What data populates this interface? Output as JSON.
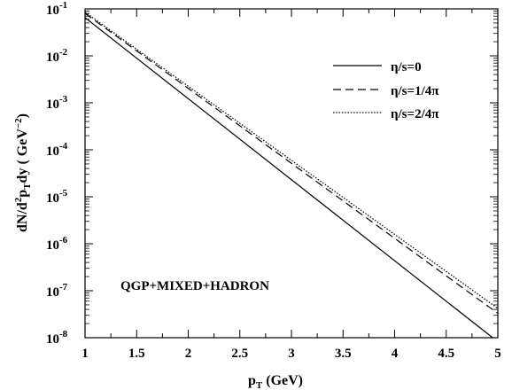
{
  "chart_data": {
    "type": "line",
    "xlabel_main": "p",
    "xlabel_sub": "T",
    "xlabel_unit": " (GeV)",
    "ylabel_parts": [
      "dN/d",
      "2",
      "p",
      "T",
      "dy ( GeV",
      "−2",
      ")"
    ],
    "xlim": [
      1,
      5
    ],
    "ylim_log10": [
      -8,
      -1
    ],
    "yscale": "log",
    "x_ticks": [
      {
        "v": 1,
        "label": "1"
      },
      {
        "v": 1.5,
        "label": "1.5"
      },
      {
        "v": 2,
        "label": "2"
      },
      {
        "v": 2.5,
        "label": "2.5"
      },
      {
        "v": 3,
        "label": "3"
      },
      {
        "v": 3.5,
        "label": "3.5"
      },
      {
        "v": 4,
        "label": "4"
      },
      {
        "v": 4.5,
        "label": "4.5"
      },
      {
        "v": 5,
        "label": "5"
      }
    ],
    "y_ticks": [
      {
        "exp": -1,
        "base": "10",
        "sup": "-1"
      },
      {
        "exp": -2,
        "base": "10",
        "sup": "-2"
      },
      {
        "exp": -3,
        "base": "10",
        "sup": "-3"
      },
      {
        "exp": -4,
        "base": "10",
        "sup": "-4"
      },
      {
        "exp": -5,
        "base": "10",
        "sup": "-5"
      },
      {
        "exp": -6,
        "base": "10",
        "sup": "-6"
      },
      {
        "exp": -7,
        "base": "10",
        "sup": "-7"
      },
      {
        "exp": -8,
        "base": "10",
        "sup": "-8"
      }
    ],
    "series": [
      {
        "name": "η/s=0",
        "dash": "solid",
        "x": [
          1,
          4.95
        ],
        "y": [
          0.065,
          1e-08
        ]
      },
      {
        "name": "η/s=1/4π",
        "dash": "dashed",
        "x": [
          1,
          5
        ],
        "y": [
          0.08,
          3.3e-08
        ]
      },
      {
        "name": "η/s=2/4π",
        "dash": "dotted",
        "x": [
          1,
          5
        ],
        "y": [
          0.085,
          4.2e-08
        ]
      }
    ],
    "legend_position": "top-right",
    "annotation": "QGP+MIXED+HADRON"
  }
}
